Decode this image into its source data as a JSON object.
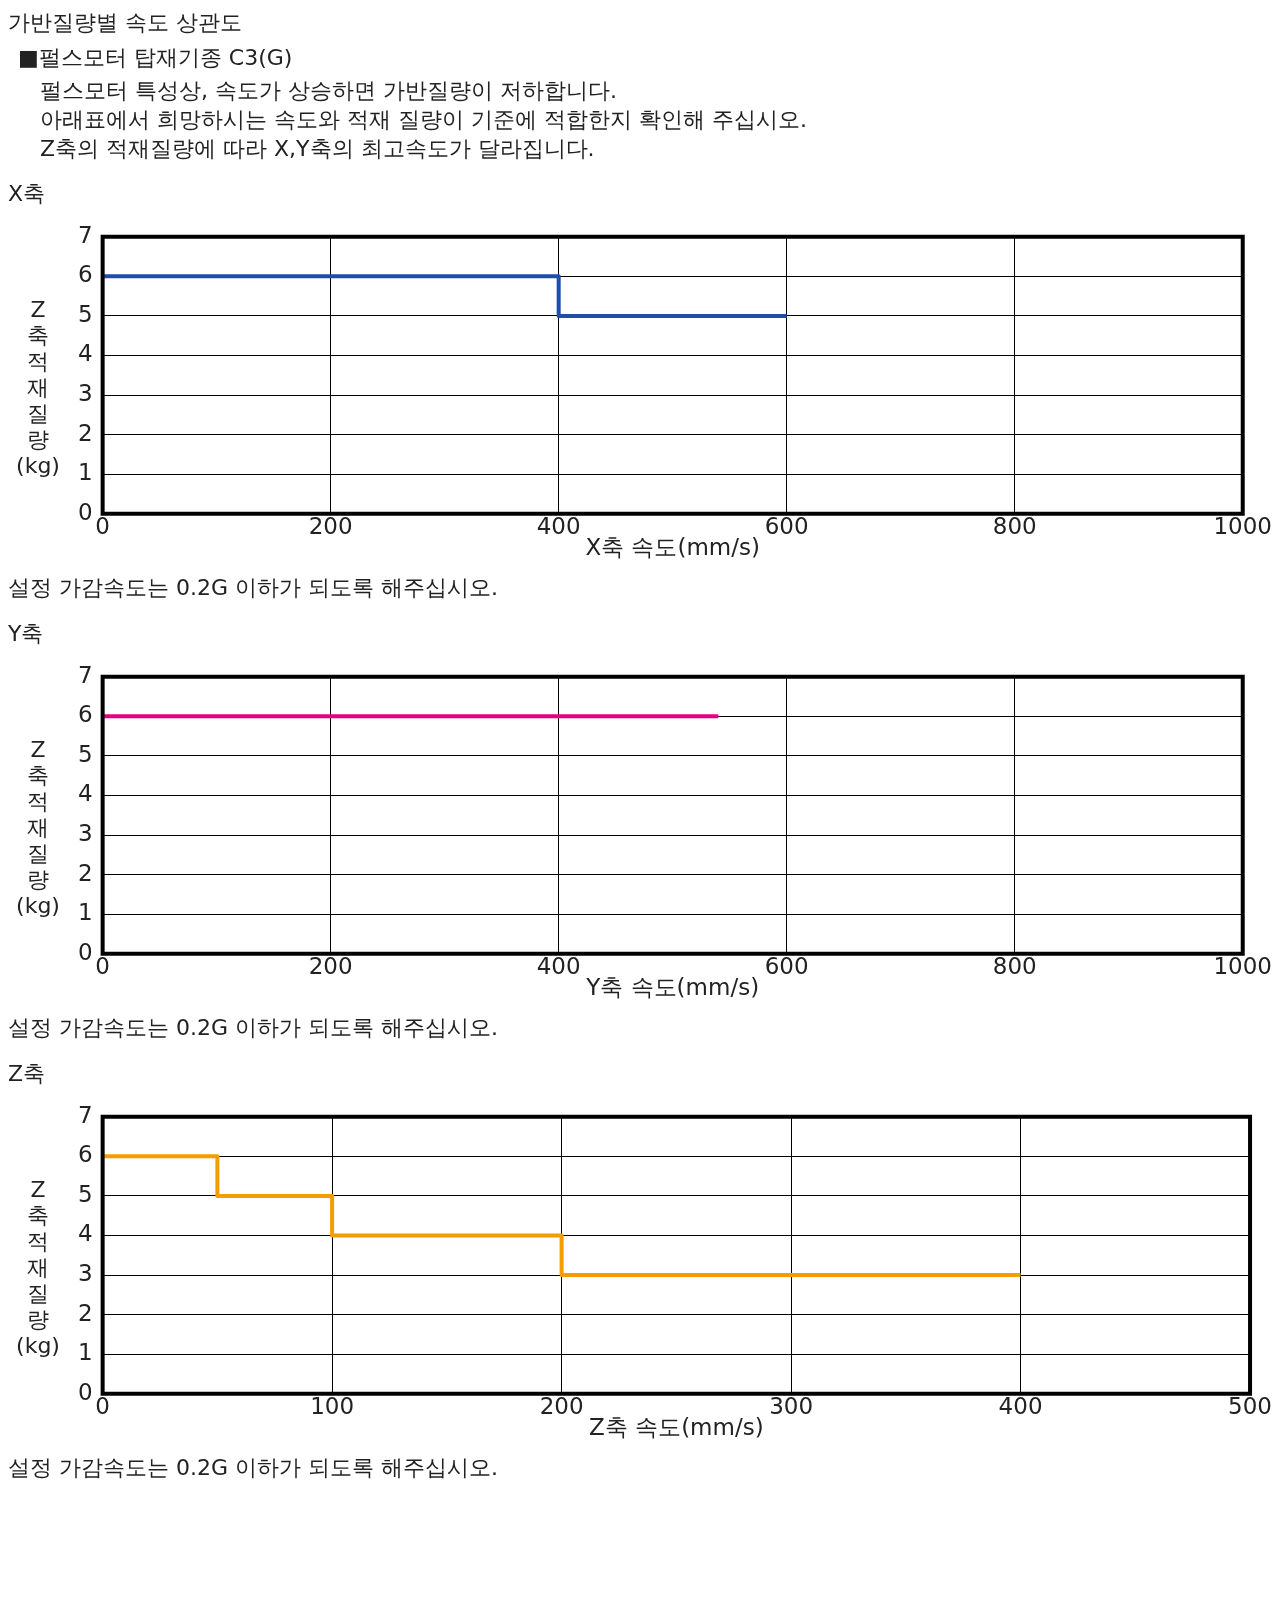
{
  "chart_data": [
    {
      "type": "other",
      "title": "가반질량별 속도 상관도",
      "subtitle": "■펄스모터 탑재기종 C3(G)",
      "annotations": [
        "펄스모터 특성상, 속도가 상승하면 가반질량이 저하합니다.",
        "아래표에서 희망하시는 속도와 적재 질량이 기준에 적합한지 확인해 주십시오.",
        "Z축의 적재질량에 따라 X,Y축의 최고속도가 달라집니다."
      ]
    },
    {
      "type": "step",
      "title": "X축",
      "xlabel": "X축 속도(mm/s)",
      "ylabel": "Z축적재질량(kg)",
      "x": [
        0,
        400,
        600
      ],
      "series": [
        {
          "color": "#1f4ea6",
          "values": [
            6,
            5,
            5
          ]
        }
      ],
      "xlim": [
        0,
        1000
      ],
      "xticks": [
        0,
        200,
        400,
        600,
        800,
        1000
      ],
      "ylim": [
        0,
        7
      ],
      "yticks": [
        0,
        1,
        2,
        3,
        4,
        5,
        6,
        7
      ],
      "grid": true,
      "legend": false,
      "annotations": [
        "설정 가감속도는 0.2G 이하가 되도록 해주십시오."
      ]
    },
    {
      "type": "step",
      "title": "Y축",
      "xlabel": "Y축 속도(mm/s)",
      "ylabel": "Z축적재질량(kg)",
      "x": [
        0,
        540
      ],
      "series": [
        {
          "color": "#e6007e",
          "values": [
            6,
            6
          ]
        }
      ],
      "xlim": [
        0,
        1000
      ],
      "xticks": [
        0,
        200,
        400,
        600,
        800,
        1000
      ],
      "ylim": [
        0,
        7
      ],
      "yticks": [
        0,
        1,
        2,
        3,
        4,
        5,
        6,
        7
      ],
      "grid": true,
      "legend": false,
      "annotations": [
        "설정 가감속도는 0.2G 이하가 되도록 해주십시오."
      ]
    },
    {
      "type": "step",
      "title": "Z축",
      "xlabel": "Z축 속도(mm/s)",
      "ylabel": "Z축적재질량(kg)",
      "x": [
        0,
        50,
        100,
        200,
        400
      ],
      "series": [
        {
          "color": "#f59c00",
          "values": [
            6,
            5,
            4,
            3,
            3
          ]
        }
      ],
      "xlim": [
        0,
        500
      ],
      "xticks": [
        0,
        100,
        200,
        300,
        400,
        500
      ],
      "ylim": [
        0,
        7
      ],
      "yticks": [
        0,
        1,
        2,
        3,
        4,
        5,
        6,
        7
      ],
      "grid": true,
      "legend": false,
      "annotations": [
        "설정 가감속도는 0.2G 이하가 되도록 해주십시오."
      ]
    }
  ]
}
